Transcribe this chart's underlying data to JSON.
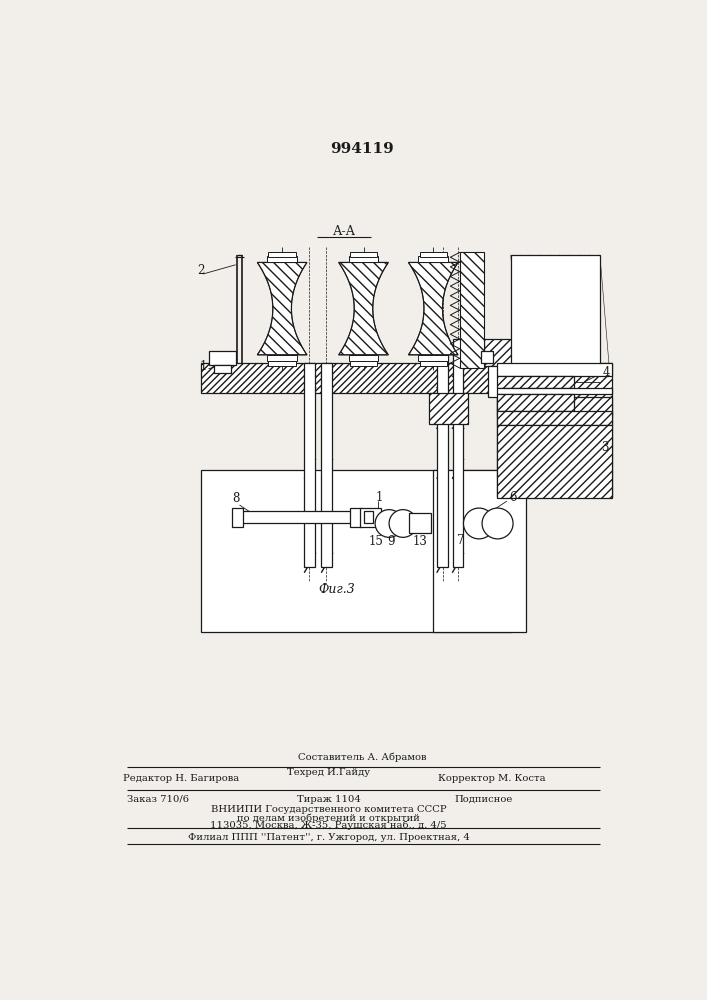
{
  "patent_number": "994119",
  "section_label": "А-А",
  "figure_label": "Фиг.3",
  "bg_color": "#f2efea",
  "line_color": "#1a1a1a",
  "footer": {
    "line1": "Составитель А. Абрамов",
    "line2a": "Редактор Н. Багирова",
    "line2b": "Техред И.Гайду",
    "line2c": "Корректор М. Коста",
    "line3a": "Заказ 710/6",
    "line3b": "Тираж 1104",
    "line3c": "Подписное",
    "line4": "ВНИИПИ Государственного комитета СССР",
    "line5": "по делам изобретений и открытий",
    "line6": "113035, Москва, Ж-35, Раушская наб., д. 4/5",
    "line7": "Филиал ППП ''Патент'', г. Ужгород, ул. Проектная, 4"
  }
}
